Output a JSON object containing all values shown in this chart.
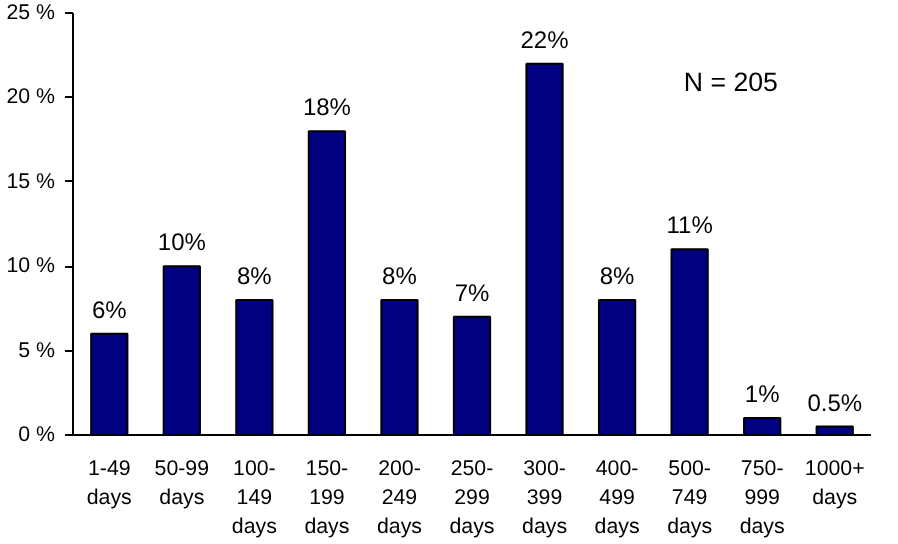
{
  "chart_data": {
    "type": "bar",
    "categories": [
      "1-49\ndays",
      "50-99\ndays",
      "100-\n149\ndays",
      "150-\n199\ndays",
      "200-\n249\ndays",
      "250-\n299\ndays",
      "300-\n399\ndays",
      "400-\n499\ndays",
      "500-\n749\ndays",
      "750-\n999\ndays",
      "1000+\ndays"
    ],
    "values": [
      6,
      10,
      8,
      18,
      8,
      7,
      22,
      8,
      11,
      1,
      0.5
    ],
    "value_labels": [
      "6%",
      "10%",
      "8%",
      "18%",
      "8%",
      "7%",
      "22%",
      "8%",
      "11%",
      "1%",
      "0.5%"
    ],
    "color": "#000080",
    "ylim": [
      0,
      25
    ],
    "yticks": [
      {
        "value": 0,
        "label": "0 %"
      },
      {
        "value": 5,
        "label": "5 %"
      },
      {
        "value": 10,
        "label": "10 %"
      },
      {
        "value": 15,
        "label": "15 %"
      },
      {
        "value": 20,
        "label": "20 %"
      },
      {
        "value": 25,
        "label": "25 %"
      }
    ],
    "annotations": [
      "N = 205"
    ],
    "grid": false
  }
}
